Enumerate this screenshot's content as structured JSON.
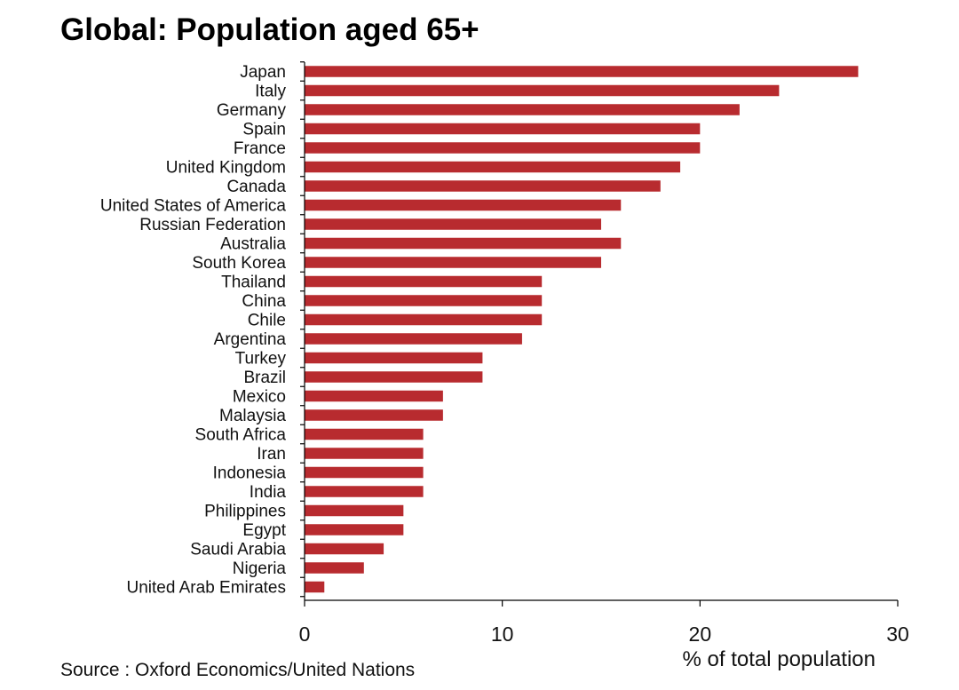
{
  "chart_data": {
    "type": "bar",
    "orientation": "horizontal",
    "title": "Global: Population aged 65+",
    "xlabel": "% of total population",
    "ylabel": "",
    "source": "Source : Oxford Economics/United Nations",
    "xlim": [
      0,
      30
    ],
    "xticks": [
      "0",
      "10",
      "20",
      "30"
    ],
    "grid": false,
    "legend": "none",
    "bar_color": "#b82b2f",
    "categories": [
      "Japan",
      "Italy",
      "Germany",
      "Spain",
      "France",
      "United Kingdom",
      "Canada",
      "United States of America",
      "Russian Federation",
      "Australia",
      "South Korea",
      "Thailand",
      "China",
      "Chile",
      "Argentina",
      "Turkey",
      "Brazil",
      "Mexico",
      "Malaysia",
      "South Africa",
      "Iran",
      "Indonesia",
      "India",
      "Philippines",
      "Egypt",
      "Saudi Arabia",
      "Nigeria",
      "United Arab Emirates"
    ],
    "values": [
      28,
      24,
      22,
      20,
      20,
      19,
      18,
      16,
      15,
      16,
      15,
      12,
      12,
      12,
      11,
      9,
      9,
      7,
      7,
      6,
      6,
      6,
      6,
      5,
      5,
      4,
      3,
      1
    ]
  }
}
